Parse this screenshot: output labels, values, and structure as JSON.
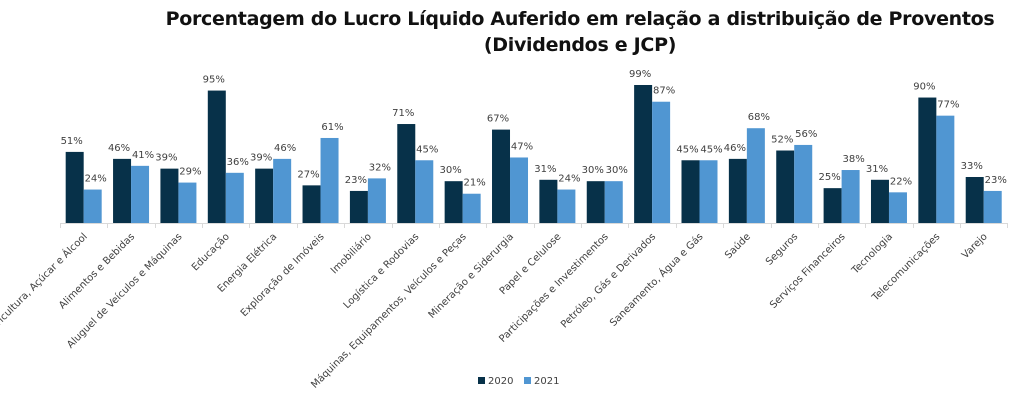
{
  "chart_data": {
    "type": "bar",
    "title": "Porcentagem do Lucro Líquido Auferido em relação a distribuição de Proventos",
    "subtitle": "(Dividendos e JCP)",
    "xlabel": "",
    "ylabel": "",
    "ylim": [
      0,
      100
    ],
    "grid": false,
    "legend_position": "bottom",
    "categories": [
      "Agricultura, Açúcar e Álcool",
      "Alimentos e Bebidas",
      "Aluguel de Veículos e Máquinas",
      "Educação",
      "Energia Elétrica",
      "Exploração de Imóveis",
      "Imobiliário",
      "Logística e Rodovias",
      "Máquinas, Equipamentos, Veículos e Peças",
      "Mineração e Siderurgia",
      "Papel e Celulose",
      "Participações e Investimentos",
      "Petróleo, Gás e Derivados",
      "Saneamento, Água e Gás",
      "Saúde",
      "Seguros",
      "Serviços Financeiros",
      "Tecnologia",
      "Telecomunicações",
      "Varejo"
    ],
    "series": [
      {
        "name": "2020",
        "color": "#073149",
        "values": [
          51,
          46,
          39,
          95,
          39,
          27,
          23,
          71,
          30,
          67,
          31,
          30,
          99,
          45,
          46,
          52,
          25,
          31,
          90,
          33
        ],
        "labels": [
          "51%",
          "46%",
          "39%",
          "95%",
          "39%",
          "27%",
          "23%",
          "71%",
          "30%",
          "67%",
          "31%",
          "30%",
          "99%",
          "45%",
          "46%",
          "52%",
          "25%",
          "31%",
          "90%",
          "33%"
        ]
      },
      {
        "name": "2021",
        "color": "#5096d2",
        "values": [
          24,
          41,
          29,
          36,
          46,
          61,
          32,
          45,
          21,
          47,
          24,
          30,
          87,
          45,
          68,
          56,
          38,
          22,
          77,
          23
        ],
        "labels": [
          "24%",
          "41%",
          "29%",
          "36%",
          "46%",
          "61%",
          "32%",
          "45%",
          "21%",
          "47%",
          "24%",
          "30%",
          "87%",
          "45%",
          "68%",
          "56%",
          "38%",
          "22%",
          "77%",
          "23%"
        ]
      }
    ]
  }
}
